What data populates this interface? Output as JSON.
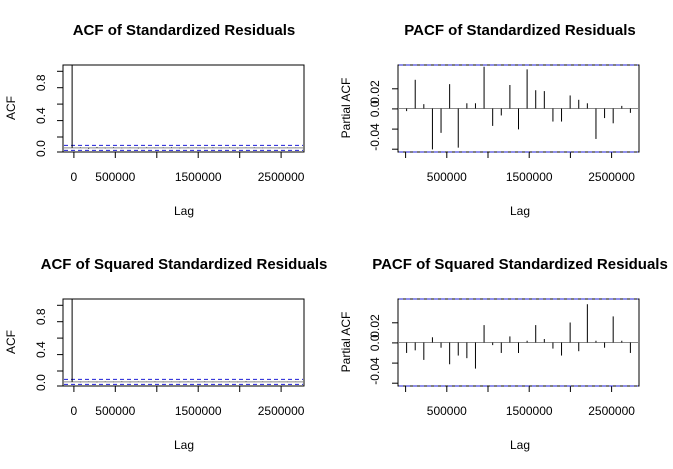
{
  "chart_data": [
    {
      "type": "bar",
      "kind": "acf",
      "title": "ACF of Standardized Residuals",
      "xlabel": "Lag",
      "ylabel": "ACF",
      "xlim": [
        -110000,
        2800000
      ],
      "ylim": [
        -0.05,
        1.0
      ],
      "xticks": [
        0,
        500000,
        1500000,
        2500000
      ],
      "xtick_labels": [
        "0",
        "500000",
        "1500000",
        "2500000"
      ],
      "yticks": [
        0.0,
        0.4,
        0.8
      ],
      "ytick_labels": [
        "0.0",
        "0.4",
        "0.8"
      ],
      "conf_bounds": [
        -0.03,
        0.03
      ],
      "grid": false,
      "lags": [
        0,
        100000,
        200000,
        300000,
        400000,
        500000,
        600000,
        700000,
        800000,
        900000,
        1000000,
        1100000,
        1200000,
        1300000,
        1400000,
        1500000,
        1600000,
        1700000,
        1800000,
        1900000,
        2000000,
        2100000,
        2200000,
        2300000,
        2400000,
        2500000,
        2600000,
        2700000
      ],
      "values": [
        1.0,
        0.005,
        -0.01,
        0.008,
        -0.005,
        0.006,
        -0.004,
        0.003,
        -0.006,
        0.005,
        -0.003,
        0.004,
        0.006,
        -0.005,
        0.004,
        0.003,
        -0.004,
        0.005,
        -0.003,
        0.004,
        -0.005,
        0.003,
        0.004,
        -0.003,
        0.002,
        -0.004,
        0.003,
        -0.002
      ]
    },
    {
      "type": "bar",
      "kind": "pacf",
      "title": "PACF of Standardized Residuals",
      "xlabel": "Lag",
      "ylabel": "Partial ACF",
      "xlim": [
        0,
        2800000
      ],
      "ylim": [
        -0.05,
        0.05
      ],
      "xticks": [
        0,
        500000,
        1500000,
        2500000
      ],
      "xtick_labels": [
        "0",
        "500000",
        "1500000",
        "2500000"
      ],
      "yticks": [
        -0.04,
        0.0,
        0.02
      ],
      "ytick_labels": [
        "-0.04",
        "0.0",
        "0.02"
      ],
      "conf_bounds": [
        -0.05,
        0.05
      ],
      "grid": false,
      "lags": [
        100000,
        200000,
        300000,
        400000,
        500000,
        600000,
        700000,
        800000,
        900000,
        1000000,
        1100000,
        1200000,
        1300000,
        1400000,
        1500000,
        1600000,
        1700000,
        1800000,
        1900000,
        2000000,
        2100000,
        2200000,
        2300000,
        2400000,
        2500000,
        2600000,
        2700000
      ],
      "values": [
        -0.003,
        0.033,
        0.005,
        -0.047,
        -0.028,
        0.028,
        -0.045,
        0.006,
        0.006,
        0.048,
        -0.02,
        -0.008,
        0.027,
        -0.024,
        0.045,
        0.021,
        0.02,
        -0.015,
        -0.015,
        0.015,
        0.01,
        0.006,
        -0.035,
        -0.011,
        -0.017,
        0.003,
        -0.005
      ]
    },
    {
      "type": "bar",
      "kind": "acf",
      "title": "ACF of Squared Standardized Residuals",
      "xlabel": "Lag",
      "ylabel": "ACF",
      "xlim": [
        -110000,
        2800000
      ],
      "ylim": [
        -0.05,
        1.0
      ],
      "xticks": [
        0,
        500000,
        1500000,
        2500000
      ],
      "xtick_labels": [
        "0",
        "500000",
        "1500000",
        "2500000"
      ],
      "yticks": [
        0.0,
        0.4,
        0.8
      ],
      "ytick_labels": [
        "0.0",
        "0.4",
        "0.8"
      ],
      "conf_bounds": [
        -0.03,
        0.03
      ],
      "grid": false,
      "lags": [
        0,
        100000,
        200000,
        300000,
        400000,
        500000,
        600000,
        700000,
        800000,
        900000,
        1000000,
        1100000,
        1200000,
        1300000,
        1400000,
        1500000,
        1600000,
        1700000,
        1800000,
        1900000,
        2000000,
        2100000,
        2200000,
        2300000,
        2400000,
        2500000,
        2600000,
        2700000
      ],
      "values": [
        1.0,
        -0.004,
        0.003,
        -0.005,
        0.004,
        -0.003,
        0.005,
        -0.004,
        0.003,
        -0.002,
        0.004,
        -0.003,
        0.002,
        -0.004,
        0.003,
        -0.002,
        0.004,
        -0.003,
        0.002,
        0.003,
        -0.004,
        0.006,
        -0.002,
        0.003,
        -0.002,
        0.002,
        -0.003,
        0.002
      ]
    },
    {
      "type": "bar",
      "kind": "pacf",
      "title": "PACF of Squared Standardized Residuals",
      "xlabel": "Lag",
      "ylabel": "Partial ACF",
      "xlim": [
        0,
        2800000
      ],
      "ylim": [
        -0.05,
        0.05
      ],
      "xticks": [
        0,
        500000,
        1500000,
        2500000
      ],
      "xtick_labels": [
        "0",
        "500000",
        "1500000",
        "2500000"
      ],
      "yticks": [
        -0.04,
        0.0,
        0.02
      ],
      "ytick_labels": [
        "-0.04",
        "0.0",
        "0.02"
      ],
      "conf_bounds": [
        -0.05,
        0.05
      ],
      "grid": false,
      "lags": [
        100000,
        200000,
        300000,
        400000,
        500000,
        600000,
        700000,
        800000,
        900000,
        1000000,
        1100000,
        1200000,
        1300000,
        1400000,
        1500000,
        1600000,
        1700000,
        1800000,
        1900000,
        2000000,
        2100000,
        2200000,
        2300000,
        2400000,
        2500000,
        2600000,
        2700000
      ],
      "values": [
        -0.012,
        -0.009,
        -0.02,
        0.006,
        -0.006,
        -0.025,
        -0.015,
        -0.018,
        -0.03,
        0.02,
        -0.003,
        -0.012,
        0.007,
        -0.012,
        0.002,
        0.02,
        0.004,
        -0.007,
        -0.015,
        0.023,
        -0.01,
        0.044,
        0.002,
        -0.006,
        0.03,
        0.002,
        -0.012
      ]
    }
  ],
  "style": {
    "bar_color": "#000000",
    "bound_color": "#1f1fd6",
    "zero_line_color": "#8a8a8a",
    "axis_color": "#000000"
  }
}
